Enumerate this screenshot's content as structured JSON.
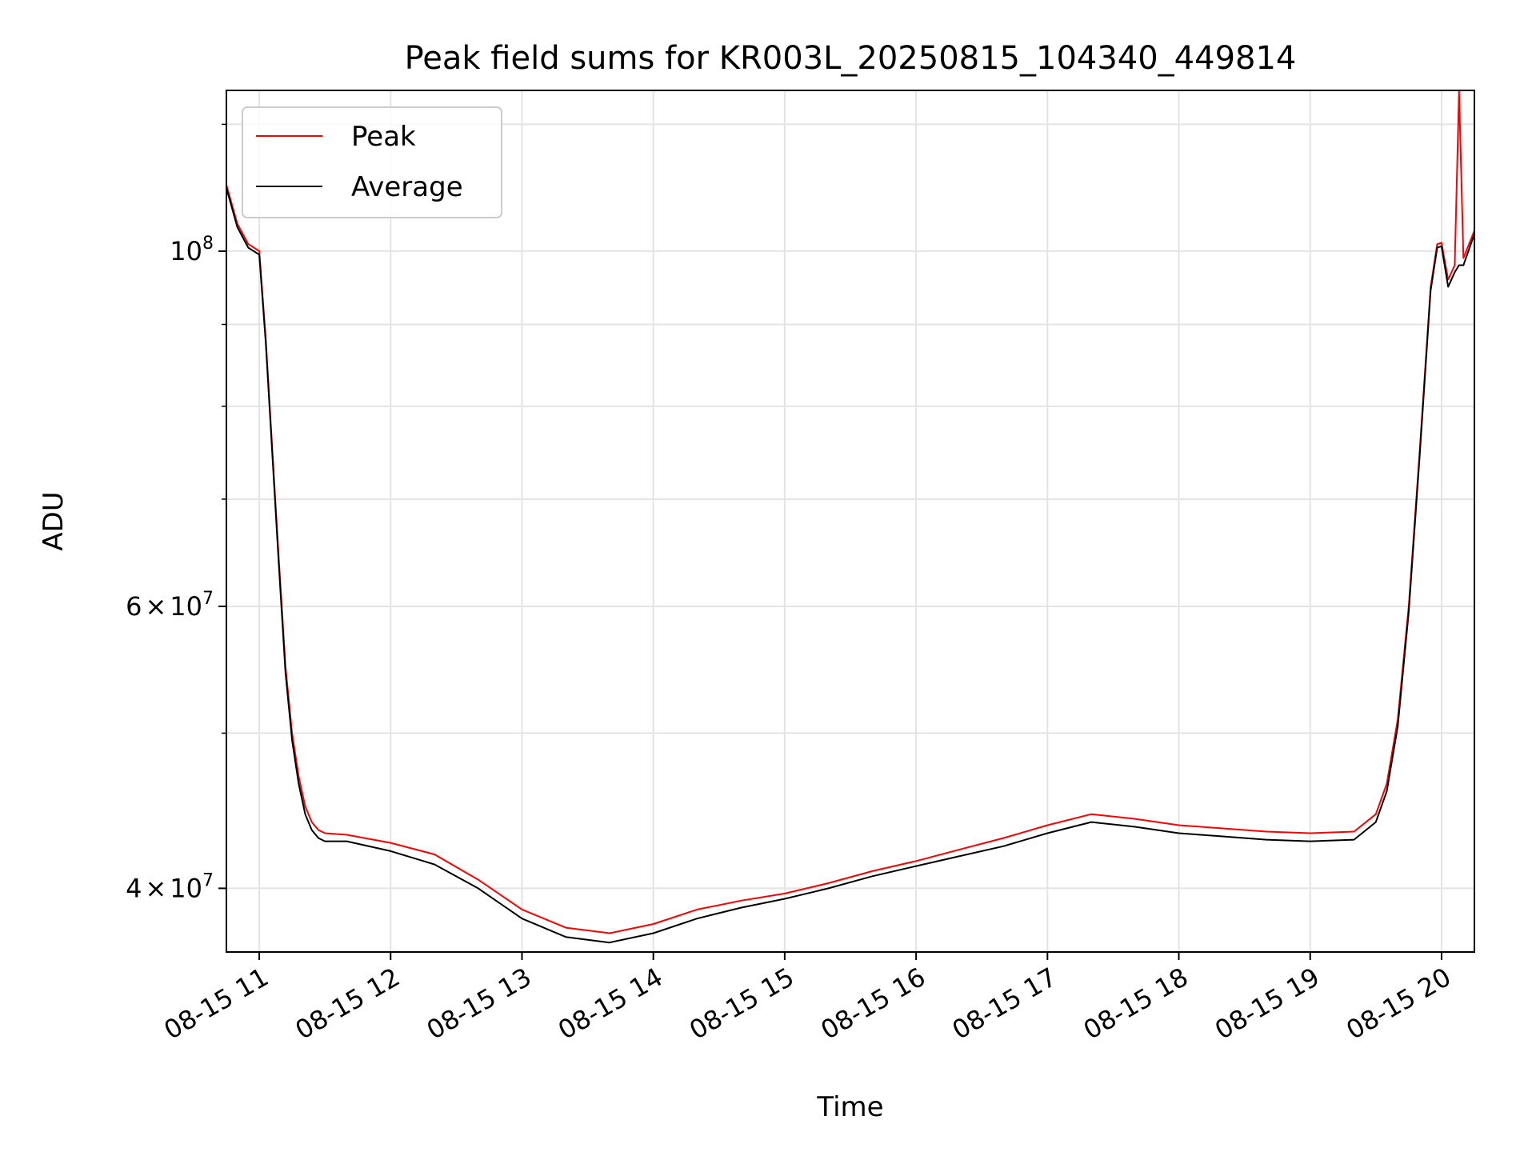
{
  "chart_data": {
    "type": "line",
    "title": "Peak field sums for KR003L_20250815_104340_449814",
    "xlabel": "Time",
    "ylabel": "ADU",
    "y_scale": "log",
    "ylim": [
      36500000,
      126000000
    ],
    "xlim": [
      "08-15 10:45",
      "08-15 20:15"
    ],
    "x_tick_labels": [
      "08-15 11",
      "08-15 12",
      "08-15 13",
      "08-15 14",
      "08-15 15",
      "08-15 16",
      "08-15 17",
      "08-15 18",
      "08-15 19",
      "08-15 20"
    ],
    "y_tick_labels": [
      {
        "value": 40000000,
        "mantissa": "4",
        "exponent": "7"
      },
      {
        "value": 60000000,
        "mantissa": "6",
        "exponent": "7"
      },
      {
        "value": 100000000,
        "mantissa": "",
        "exponent": "8"
      }
    ],
    "grid": true,
    "legend_position": "upper-left",
    "colors": {
      "Peak": "#ff0000",
      "Average": "#000000"
    },
    "x": [
      "08-15 10:45",
      "08-15 10:50",
      "08-15 10:55",
      "08-15 11:00",
      "08-15 11:03",
      "08-15 11:06",
      "08-15 11:09",
      "08-15 11:12",
      "08-15 11:15",
      "08-15 11:18",
      "08-15 11:21",
      "08-15 11:24",
      "08-15 11:27",
      "08-15 11:30",
      "08-15 11:40",
      "08-15 12:00",
      "08-15 12:20",
      "08-15 12:40",
      "08-15 13:00",
      "08-15 13:20",
      "08-15 13:40",
      "08-15 14:00",
      "08-15 14:20",
      "08-15 14:40",
      "08-15 15:00",
      "08-15 15:20",
      "08-15 15:40",
      "08-15 16:00",
      "08-15 16:20",
      "08-15 16:40",
      "08-15 17:00",
      "08-15 17:20",
      "08-15 17:40",
      "08-15 18:00",
      "08-15 18:20",
      "08-15 18:40",
      "08-15 19:00",
      "08-15 19:20",
      "08-15 19:30",
      "08-15 19:35",
      "08-15 19:40",
      "08-15 19:45",
      "08-15 19:50",
      "08-15 19:55",
      "08-15 19:58",
      "08-15 20:00",
      "08-15 20:03",
      "08-15 20:06",
      "08-15 20:08",
      "08-15 20:10",
      "08-15 20:15"
    ],
    "series": [
      {
        "name": "Peak",
        "values": [
          110000000,
          104000000,
          101000000,
          100000000,
          88000000,
          75000000,
          64000000,
          55000000,
          50000000,
          47000000,
          45000000,
          44000000,
          43500000,
          43300000,
          43200000,
          42700000,
          42000000,
          40500000,
          38800000,
          37800000,
          37500000,
          38000000,
          38800000,
          39300000,
          39700000,
          40300000,
          41000000,
          41600000,
          42300000,
          43000000,
          43800000,
          44500000,
          44200000,
          43800000,
          43600000,
          43400000,
          43300000,
          43400000,
          44500000,
          46500000,
          51000000,
          60000000,
          75000000,
          95000000,
          101000000,
          101200000,
          96000000,
          98000000,
          126000000,
          99000000,
          103000000
        ]
      },
      {
        "name": "Average",
        "values": [
          109500000,
          103500000,
          100500000,
          99500000,
          87500000,
          74500000,
          63500000,
          54500000,
          49500000,
          46500000,
          44500000,
          43500000,
          43000000,
          42800000,
          42800000,
          42200000,
          41400000,
          40000000,
          38300000,
          37300000,
          37000000,
          37500000,
          38300000,
          38900000,
          39400000,
          40000000,
          40700000,
          41300000,
          41900000,
          42500000,
          43300000,
          44000000,
          43700000,
          43300000,
          43100000,
          42900000,
          42800000,
          42900000,
          44000000,
          46000000,
          50500000,
          59500000,
          74500000,
          94500000,
          100500000,
          100700000,
          95000000,
          97000000,
          98000000,
          98000000,
          102500000
        ]
      }
    ]
  }
}
